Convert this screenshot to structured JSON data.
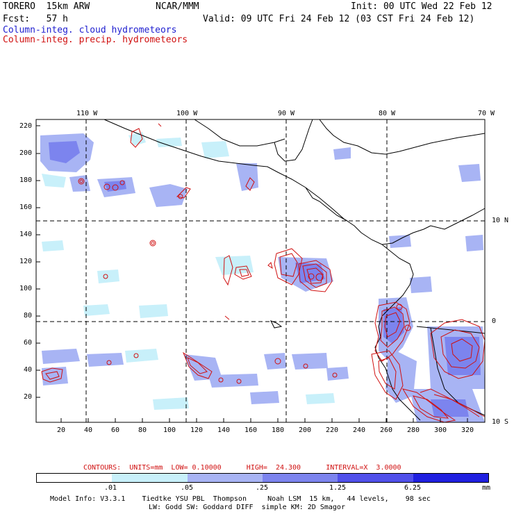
{
  "header": {
    "model": "TORERO  15km ARW",
    "org": "NCAR/MMM",
    "init": "Init: 00 UTC Wed 22 Feb 12",
    "fcst": "Fcst:   57 h",
    "valid": "Valid: 09 UTC Fri 24 Feb 12 (03 CST Fri 24 Feb 12)",
    "field1": "Column-integ. cloud hydrometeors",
    "field2": "Column-integ. precip. hydrometeors"
  },
  "colors": {
    "field1": "#2020d0",
    "field2": "#d01010",
    "cloud_light": "#c8f0fa",
    "cloud_mid": "#a8b4f4",
    "cloud_dark": "#7c84ee",
    "precip": "#d01010"
  },
  "axes": {
    "top_lon_labels": [
      "110 W",
      "100 W",
      "90 W",
      "80 W",
      "70 W"
    ],
    "right_lat_labels": [
      "10 N",
      "0",
      "10 S"
    ],
    "left_ticks": [
      "220",
      "200",
      "180",
      "160",
      "140",
      "120",
      "100",
      "80",
      "60",
      "40",
      "20"
    ],
    "bottom_ticks": [
      "20",
      "40",
      "60",
      "80",
      "100",
      "120",
      "140",
      "160",
      "180",
      "200",
      "220",
      "240",
      "260",
      "280",
      "300",
      "320"
    ]
  },
  "contour_info": {
    "label": "CONTOURS:  UNITS=mm  LOW= 0.10000      HIGH=  24.300      INTERVAL=X  3.0000"
  },
  "colorbar": {
    "levels": [
      ".01",
      ".05",
      ".25",
      "1.25",
      "6.25"
    ],
    "unit": "mm",
    "colors": [
      "#ffffff",
      "#c8f0fa",
      "#a8b4f4",
      "#7c84ee",
      "#5050ea",
      "#2020e0"
    ]
  },
  "footer": {
    "line1": "Model Info: V3.3.1    Tiedtke YSU PBL  Thompson     Noah LSM  15 km,   44 levels,    98 sec",
    "line2": "LW: Godd SW: Goddard DIFF  simple KM: 2D Smagor"
  }
}
